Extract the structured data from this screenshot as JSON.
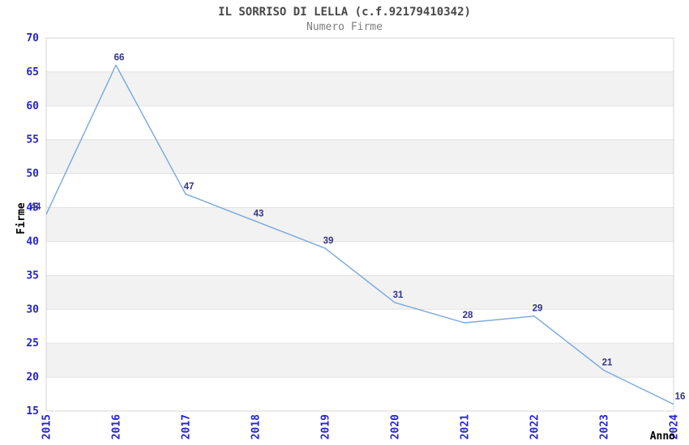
{
  "header": {
    "title": "IL SORRISO DI LELLA (c.f.92179410342)",
    "subtitle": "Numero Firme"
  },
  "chart_data": {
    "type": "line",
    "title": "IL SORRISO DI LELLA (c.f.92179410342)",
    "subtitle": "Numero Firme",
    "x": [
      2015,
      2016,
      2017,
      2018,
      2019,
      2020,
      2021,
      2022,
      2023,
      2024
    ],
    "series": [
      {
        "name": "Numero Firme",
        "values": [
          44,
          66,
          47,
          43,
          39,
          31,
          28,
          29,
          21,
          16
        ]
      }
    ],
    "xlabel": "Anno",
    "ylabel": "Firme",
    "ylim": [
      15,
      70
    ],
    "ytick_step": 5,
    "yticks": [
      15,
      20,
      25,
      30,
      35,
      40,
      45,
      50,
      55,
      60,
      65,
      70
    ],
    "grid": "horizontal",
    "banded_background": true,
    "legend_position": "none",
    "data_labels_visible": true
  },
  "colors": {
    "line": "#79a7e0",
    "tick_label": "#2424cc",
    "data_label": "#333388",
    "band_gray": "#f2f2f2",
    "band_white": "#ffffff",
    "gridline": "#e2e2e2",
    "plot_border": "#d4d4d4",
    "title": "#484848",
    "subtitle": "#7d7d7d",
    "axis_title": "#000000"
  }
}
